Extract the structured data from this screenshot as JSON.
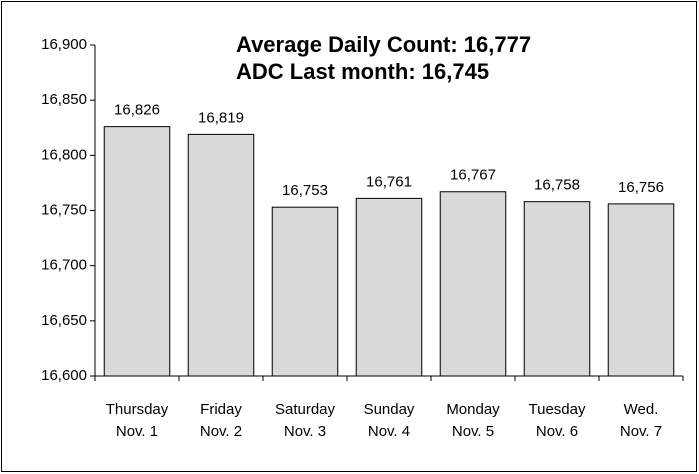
{
  "chart_data": {
    "type": "bar",
    "annotations": [
      "Average Daily Count: 16,777",
      "ADC Last month: 16,745"
    ],
    "categories": [
      [
        "Thursday",
        "Nov. 1"
      ],
      [
        "Friday",
        "Nov. 2"
      ],
      [
        "Saturday",
        "Nov. 3"
      ],
      [
        "Sunday",
        "Nov. 4"
      ],
      [
        "Monday",
        "Nov. 5"
      ],
      [
        "Tuesday",
        "Nov. 6"
      ],
      [
        "Wed.",
        "Nov. 7"
      ]
    ],
    "values": [
      16826,
      16819,
      16753,
      16761,
      16767,
      16758,
      16756
    ],
    "value_labels": [
      "16,826",
      "16,819",
      "16,753",
      "16,761",
      "16,767",
      "16,758",
      "16,756"
    ],
    "color": "#d9d9d9",
    "ylim": [
      16600,
      16900
    ],
    "yticks": [
      {
        "value": 16600,
        "label": "16,600"
      },
      {
        "value": 16650,
        "label": "16,650"
      },
      {
        "value": 16700,
        "label": "16,700"
      },
      {
        "value": 16750,
        "label": "16,750"
      },
      {
        "value": 16800,
        "label": "16,800"
      },
      {
        "value": 16850,
        "label": "16,850"
      },
      {
        "value": 16900,
        "label": "16,900"
      }
    ],
    "grid": false
  }
}
